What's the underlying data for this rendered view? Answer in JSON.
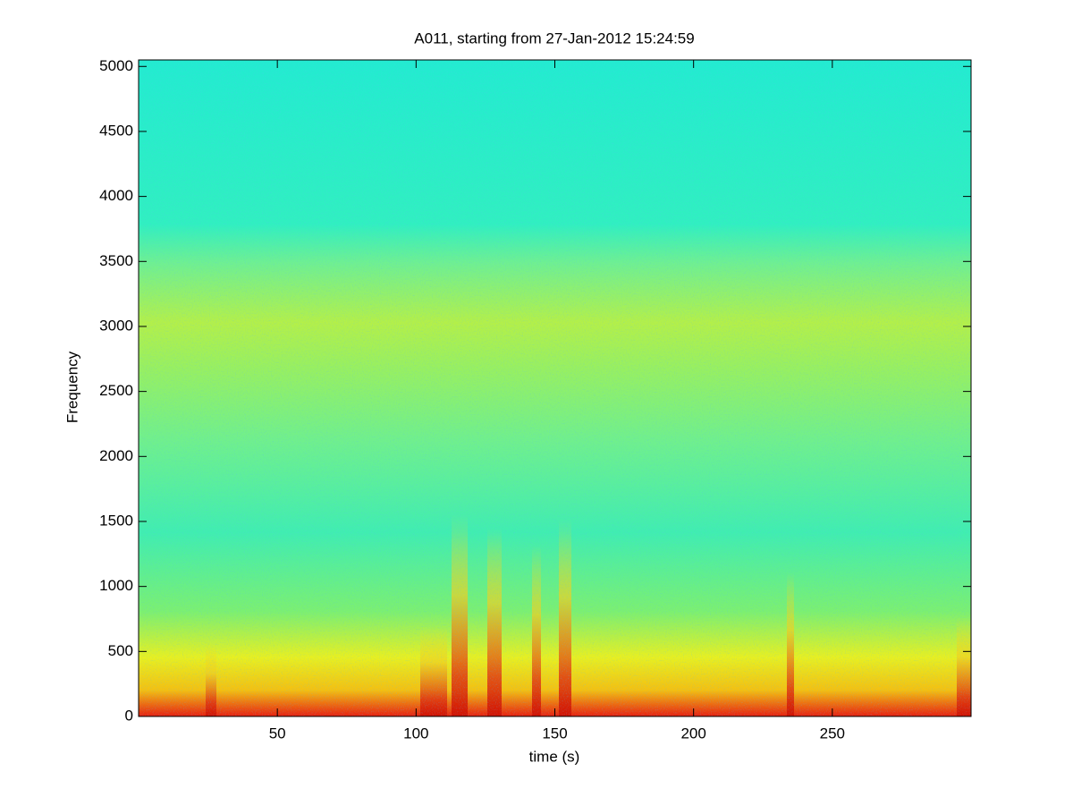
{
  "chart_data": {
    "type": "spectrogram",
    "title": "A011, starting from 27-Jan-2012 15:24:59",
    "xlabel": "time (s)",
    "ylabel": "Frequency",
    "xlim": [
      0,
      300
    ],
    "ylim": [
      0,
      5050
    ],
    "xticks": [
      50,
      100,
      150,
      200,
      250
    ],
    "yticks": [
      0,
      500,
      1000,
      1500,
      2000,
      2500,
      3000,
      3500,
      4000,
      4500,
      5000
    ]
  }
}
